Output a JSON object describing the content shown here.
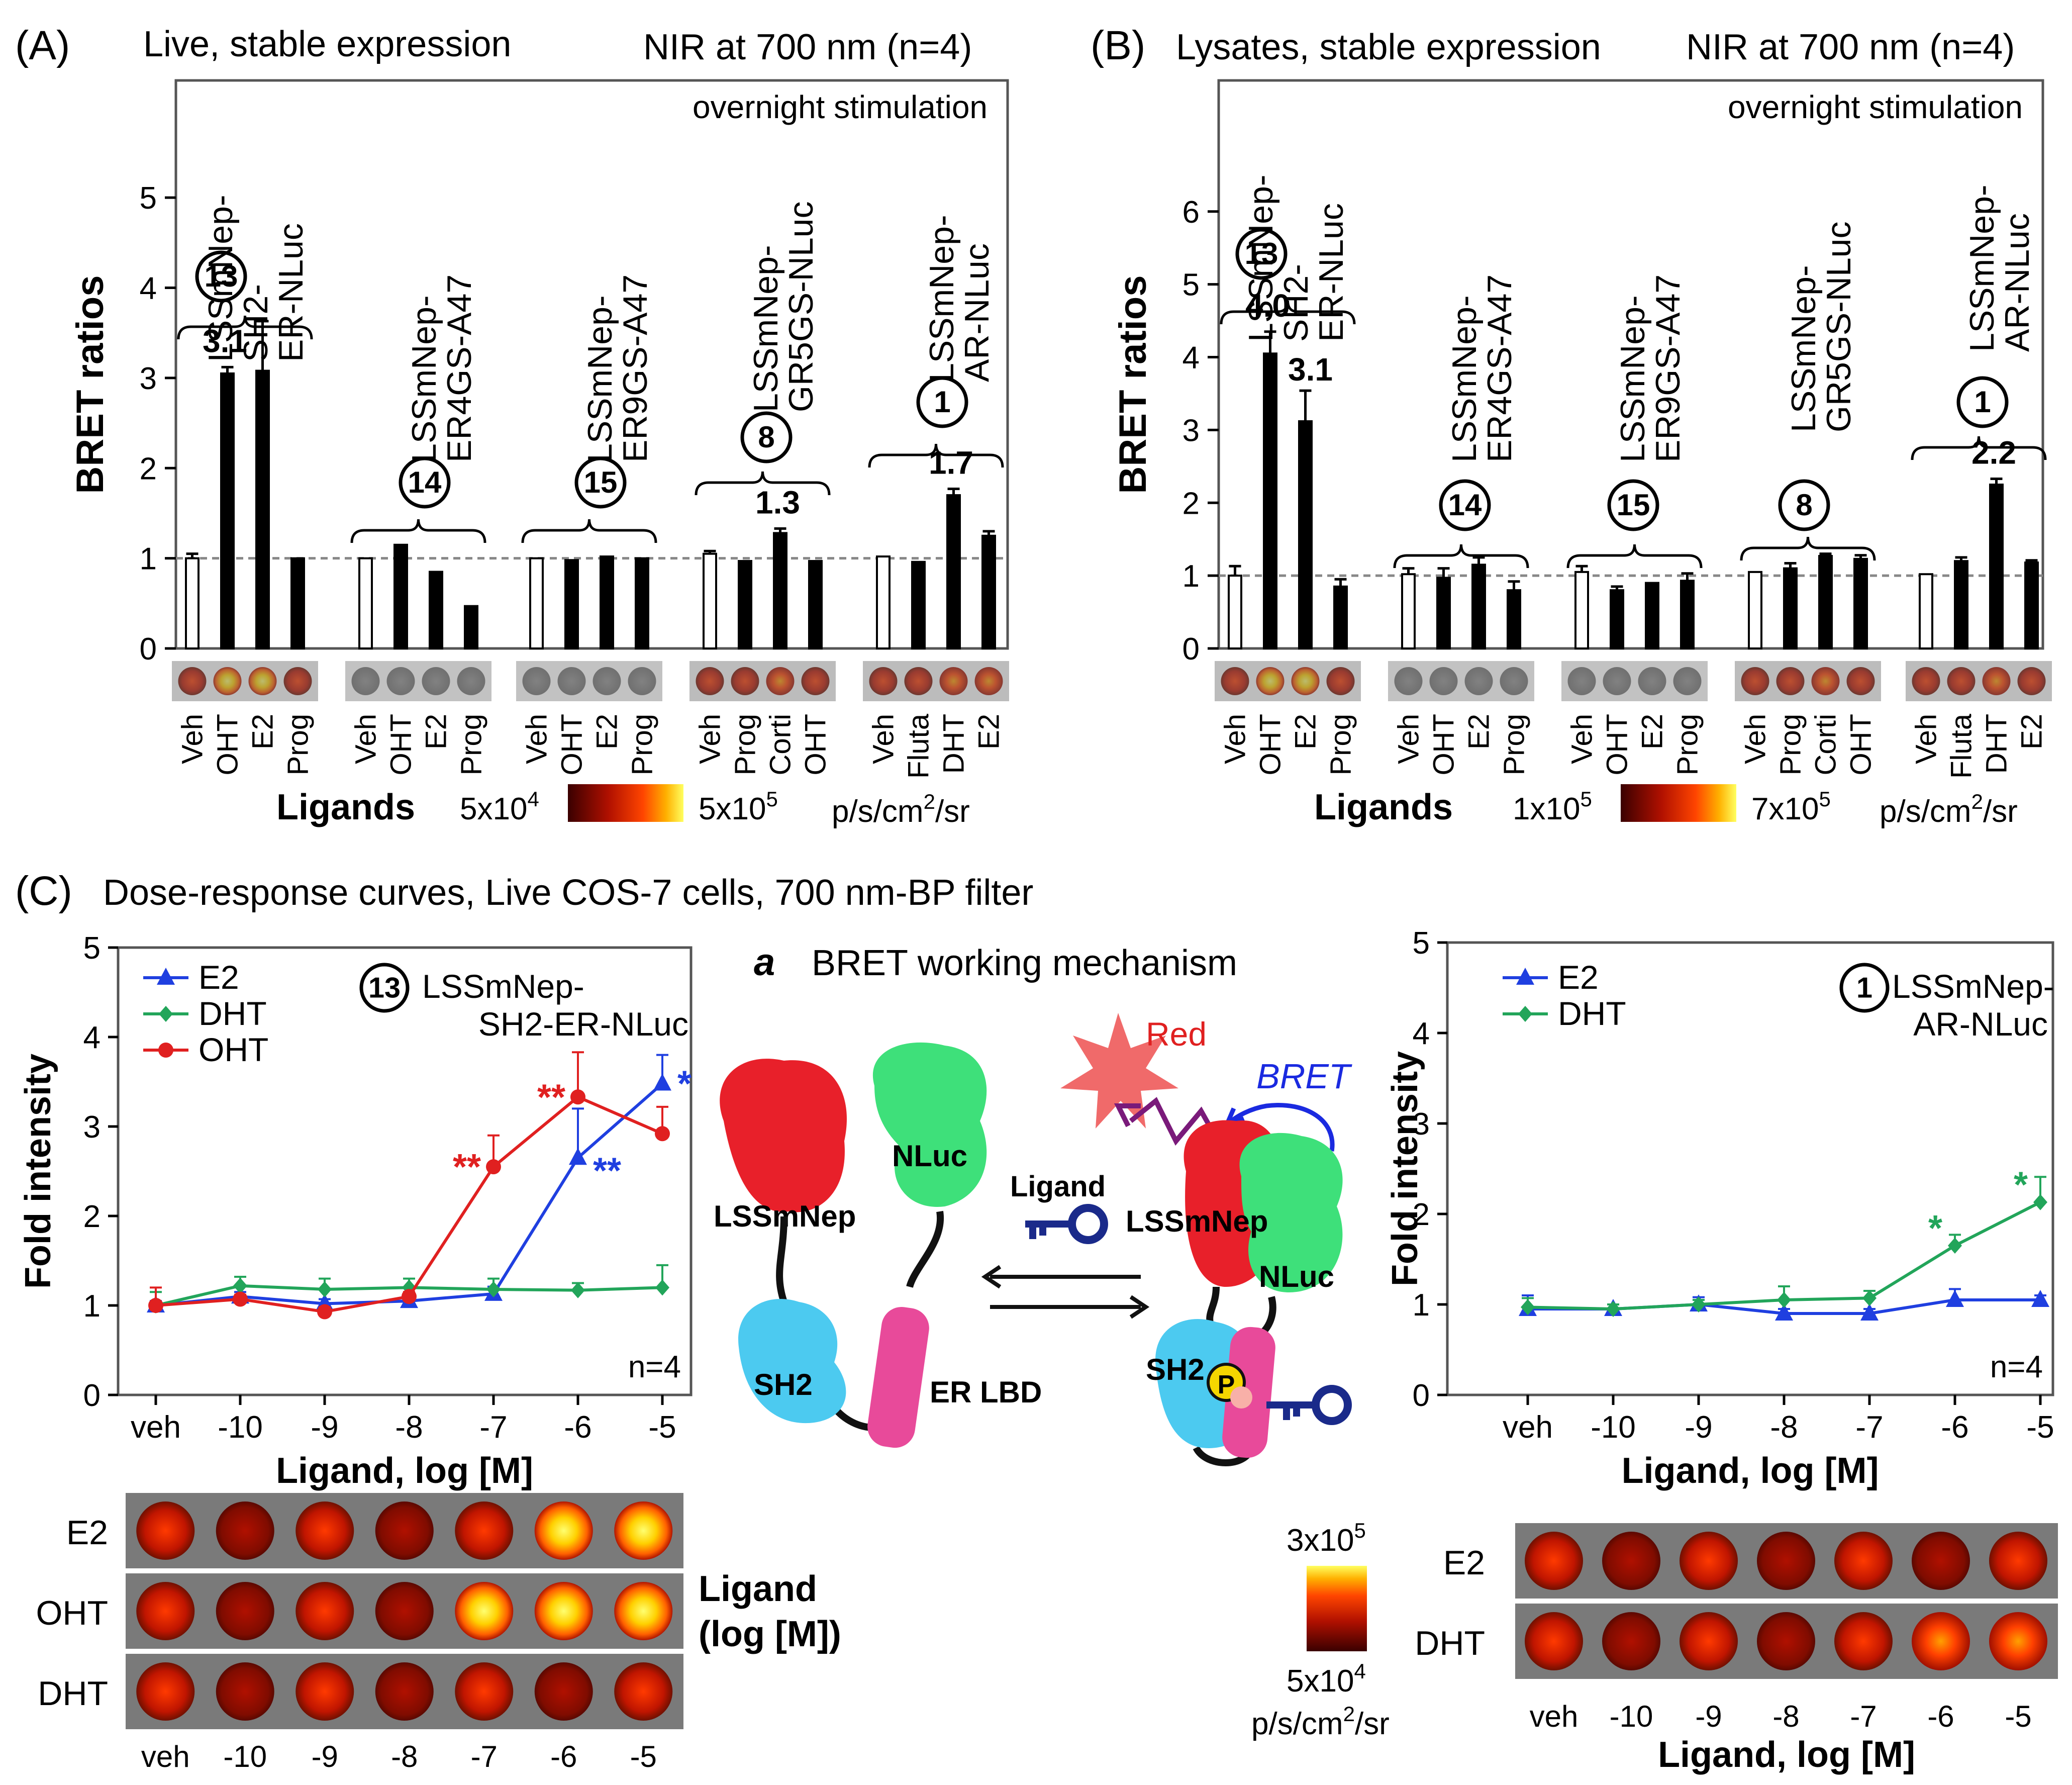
{
  "panelA": {
    "letter": "(A)",
    "subtitle": "Live, stable expression",
    "nir": "NIR at 700 nm (n=4)",
    "note": "overnight stimulation",
    "ylabel": "BRET ratios",
    "xlabel": "Ligands",
    "scale_min": "5x10",
    "scale_min_exp": "4",
    "scale_max": "5x10",
    "scale_max_exp": "5",
    "units": "p/s/cm",
    "units_exp": "2",
    "units_tail": "/sr",
    "groups": [
      {
        "num": "13",
        "lines": [
          "LSSmNep-",
          "SH2-",
          "ER-NLuc"
        ]
      },
      {
        "num": "14",
        "lines": [
          "LSSmNep-",
          "ER4GS-A47"
        ]
      },
      {
        "num": "15",
        "lines": [
          "LSSmNep-",
          "ER9GS-A47"
        ]
      },
      {
        "num": "8",
        "lines": [
          "LSSmNep-",
          "GR5GS-NLuc"
        ]
      },
      {
        "num": "1",
        "lines": [
          "LSSmNep-",
          "AR-NLuc"
        ]
      }
    ]
  },
  "panelB": {
    "letter": "(B)",
    "subtitle": "Lysates, stable expression",
    "nir": "NIR at 700 nm (n=4)",
    "note": "overnight stimulation",
    "ylabel": "BRET ratios",
    "xlabel": "Ligands",
    "scale_min": "1x10",
    "scale_min_exp": "5",
    "scale_max": "7x10",
    "scale_max_exp": "5",
    "units": "p/s/cm",
    "units_exp": "2",
    "units_tail": "/sr",
    "groups": [
      {
        "num": "13",
        "lines": [
          "LSSmNep-",
          "SH2-",
          "ER-NLuc"
        ]
      },
      {
        "num": "14",
        "lines": [
          "LSSmNep-",
          "ER4GS-A47"
        ]
      },
      {
        "num": "15",
        "lines": [
          "LSSmNep-",
          "ER9GS-A47"
        ]
      },
      {
        "num": "8",
        "lines": [
          "LSSmNep-",
          "GR5GS-NLuc"
        ]
      },
      {
        "num": "1",
        "lines": [
          "LSSmNep-",
          "AR-NLuc"
        ]
      }
    ]
  },
  "panelC": {
    "letter": "(C)",
    "title": "Dose-response curves, Live COS-7 cells, 700 nm-BP filter",
    "left_construct_num": "13",
    "left_construct": [
      "LSSmNep-",
      "SH2-ER-NLuc"
    ],
    "right_construct_num": "1",
    "right_construct": [
      "LSSmNep-",
      "AR-NLuc"
    ],
    "n_label": "n=4",
    "ylabel": "Fold intensity",
    "xlabel": "Ligand, log [M]",
    "img_rows_left": [
      "E2",
      "OHT",
      "DHT"
    ],
    "img_rows_right": [
      "E2",
      "DHT"
    ],
    "ligand_label": [
      "Ligand",
      "(log [M])"
    ],
    "scale_top": "3x10",
    "scale_top_exp": "5",
    "scale_bot": "5x10",
    "scale_bot_exp": "4",
    "units": "p/s/cm",
    "units_exp": "2",
    "units_tail": "/sr"
  },
  "mechanism": {
    "index": "a",
    "title": "BRET working mechanism",
    "red": "Red",
    "bret": "BRET",
    "nluc": "NLuc",
    "lssmnep": "LSSmNep",
    "ligand": "Ligand",
    "sh2": "SH2",
    "er_lbd": "ER LBD",
    "phos": "P"
  },
  "chart_data": [
    {
      "type": "bar",
      "title": "Live, stable expression — NIR at 700 nm (n=4)",
      "ylabel": "BRET ratios",
      "xlabel": "Ligands",
      "ylim": [
        0,
        6.3
      ],
      "yticks": [
        "0",
        "1",
        "2",
        "3",
        "4",
        "5"
      ],
      "baseline": 1,
      "groups": [
        {
          "name": "13 LSSmNep-SH2-ER-NLuc",
          "categories": [
            "Veh",
            "OHT",
            "E2",
            "Prog"
          ],
          "values": [
            1.0,
            3.05,
            3.08,
            1.0
          ],
          "errors": [
            0.05,
            0.07,
            0.55,
            0.0
          ],
          "annotation": "3.1",
          "annot_bar": 1
        },
        {
          "name": "14 LSSmNep-ER4GS-A47",
          "categories": [
            "Veh",
            "OHT",
            "E2",
            "Prog"
          ],
          "values": [
            1.0,
            1.15,
            0.85,
            0.47
          ],
          "errors": [
            0.0,
            0.0,
            0.0,
            0.0
          ],
          "annotation": "",
          "annot_bar": -1
        },
        {
          "name": "15 LSSmNep-ER9GS-A47",
          "categories": [
            "Veh",
            "OHT",
            "E2",
            "Prog"
          ],
          "values": [
            1.0,
            0.98,
            1.02,
            1.0
          ],
          "errors": [
            0.0,
            0.0,
            0.0,
            0.0
          ],
          "annotation": "",
          "annot_bar": -1
        },
        {
          "name": "8 LSSmNep-GR5GS-NLuc",
          "categories": [
            "Veh",
            "Prog",
            "Corti",
            "OHT"
          ],
          "values": [
            1.05,
            0.97,
            1.28,
            0.97
          ],
          "errors": [
            0.03,
            0.0,
            0.05,
            0.0
          ],
          "annotation": "1.3",
          "annot_bar": 2
        },
        {
          "name": "1 LSSmNep-AR-NLuc",
          "categories": [
            "Veh",
            "Fluta",
            "DHT",
            "E2"
          ],
          "values": [
            1.02,
            0.96,
            1.7,
            1.25
          ],
          "errors": [
            0.0,
            0.0,
            0.07,
            0.05
          ],
          "annotation": "1.7",
          "annot_bar": 2
        }
      ]
    },
    {
      "type": "bar",
      "title": "Lysates, stable expression — NIR at 700 nm (n=4)",
      "ylabel": "BRET ratios",
      "xlabel": "Ligands",
      "ylim": [
        0,
        7.8
      ],
      "yticks": [
        "0",
        "1",
        "2",
        "3",
        "4",
        "5",
        "6"
      ],
      "baseline": 1,
      "groups": [
        {
          "name": "13 LSSmNep-SH2-ER-NLuc",
          "categories": [
            "Veh",
            "OHT",
            "E2",
            "Prog"
          ],
          "values": [
            1.0,
            4.05,
            3.12,
            0.85
          ],
          "errors": [
            0.13,
            0.3,
            0.42,
            0.1
          ],
          "annotation": "4.0",
          "annot_bar": 1,
          "annotation2": "3.1",
          "annot_bar2": 2
        },
        {
          "name": "14 LSSmNep-ER4GS-A47",
          "categories": [
            "Veh",
            "OHT",
            "E2",
            "Prog"
          ],
          "values": [
            1.02,
            0.97,
            1.15,
            0.8
          ],
          "errors": [
            0.08,
            0.13,
            0.1,
            0.12
          ],
          "annotation": "",
          "annot_bar": -1
        },
        {
          "name": "15 LSSmNep-ER9GS-A47",
          "categories": [
            "Veh",
            "OHT",
            "E2",
            "Prog"
          ],
          "values": [
            1.05,
            0.8,
            0.9,
            0.93
          ],
          "errors": [
            0.08,
            0.05,
            0.0,
            0.1
          ],
          "annotation": "",
          "annot_bar": -1
        },
        {
          "name": "8 LSSmNep-GR5GS-NLuc",
          "categories": [
            "Veh",
            "Prog",
            "Corti",
            "OHT"
          ],
          "values": [
            1.05,
            1.1,
            1.27,
            1.23
          ],
          "errors": [
            0.0,
            0.07,
            0.03,
            0.05
          ],
          "annotation": "",
          "annot_bar": -1
        },
        {
          "name": "1 LSSmNep-AR-NLuc",
          "categories": [
            "Veh",
            "Fluta",
            "DHT",
            "E2"
          ],
          "values": [
            1.02,
            1.2,
            2.25,
            1.18
          ],
          "errors": [
            0.0,
            0.05,
            0.08,
            0.03
          ],
          "annotation": "2.2",
          "annot_bar": 2
        }
      ]
    },
    {
      "type": "line",
      "title": "13 LSSmNep-SH2-ER-NLuc",
      "xlabel": "Ligand, log [M]",
      "ylabel": "Fold intensity",
      "ylim": [
        0,
        5
      ],
      "categories": [
        "veh",
        "-10",
        "-9",
        "-8",
        "-7",
        "-6",
        "-5"
      ],
      "yticks": [
        "0",
        "1",
        "2",
        "3",
        "4",
        "5"
      ],
      "series": [
        {
          "name": "E2",
          "color": "#1f3fe0",
          "marker": "triangle",
          "values": [
            1.0,
            1.1,
            1.02,
            1.05,
            1.13,
            2.65,
            3.48
          ],
          "errors": [
            0.05,
            0.05,
            0.05,
            0.05,
            0.08,
            0.55,
            0.32
          ]
        },
        {
          "name": "DHT",
          "color": "#22a55a",
          "marker": "diamond",
          "values": [
            1.0,
            1.22,
            1.18,
            1.2,
            1.18,
            1.17,
            1.2
          ],
          "errors": [
            0.15,
            0.1,
            0.12,
            0.1,
            0.12,
            0.08,
            0.25
          ]
        },
        {
          "name": "OHT",
          "color": "#e02020",
          "marker": "circle",
          "values": [
            1.0,
            1.07,
            0.93,
            1.1,
            2.55,
            3.33,
            2.92
          ],
          "errors": [
            0.2,
            0.05,
            0.05,
            0.05,
            0.35,
            0.5,
            0.3
          ]
        }
      ],
      "annotations": [
        {
          "text": "**",
          "color": "#e02020",
          "at": "OHT -7"
        },
        {
          "text": "**",
          "color": "#e02020",
          "at": "OHT -6"
        },
        {
          "text": "**",
          "color": "#1f3fe0",
          "at": "E2 -6"
        },
        {
          "text": "*",
          "color": "#1f3fe0",
          "at": "E2 -5"
        }
      ]
    },
    {
      "type": "line",
      "title": "1 LSSmNep-AR-NLuc",
      "xlabel": "Ligand, log [M]",
      "ylabel": "Fold intensity",
      "ylim": [
        0,
        5
      ],
      "categories": [
        "veh",
        "-10",
        "-9",
        "-8",
        "-7",
        "-6",
        "-5"
      ],
      "yticks": [
        "0",
        "1",
        "2",
        "3",
        "4",
        "5"
      ],
      "series": [
        {
          "name": "E2",
          "color": "#1f3fe0",
          "marker": "triangle",
          "values": [
            0.95,
            0.95,
            1.0,
            0.9,
            0.9,
            1.05,
            1.05
          ],
          "errors": [
            0.15,
            0.05,
            0.08,
            0.05,
            0.05,
            0.12,
            0.05
          ]
        },
        {
          "name": "DHT",
          "color": "#22a55a",
          "marker": "diamond",
          "values": [
            0.97,
            0.95,
            1.0,
            1.05,
            1.07,
            1.65,
            2.13
          ],
          "errors": [
            0.1,
            0.05,
            0.05,
            0.15,
            0.08,
            0.12,
            0.28
          ]
        }
      ],
      "annotations": [
        {
          "text": "*",
          "color": "#22a55a",
          "at": "DHT -6"
        },
        {
          "text": "*",
          "color": "#22a55a",
          "at": "DHT -5"
        }
      ]
    }
  ]
}
